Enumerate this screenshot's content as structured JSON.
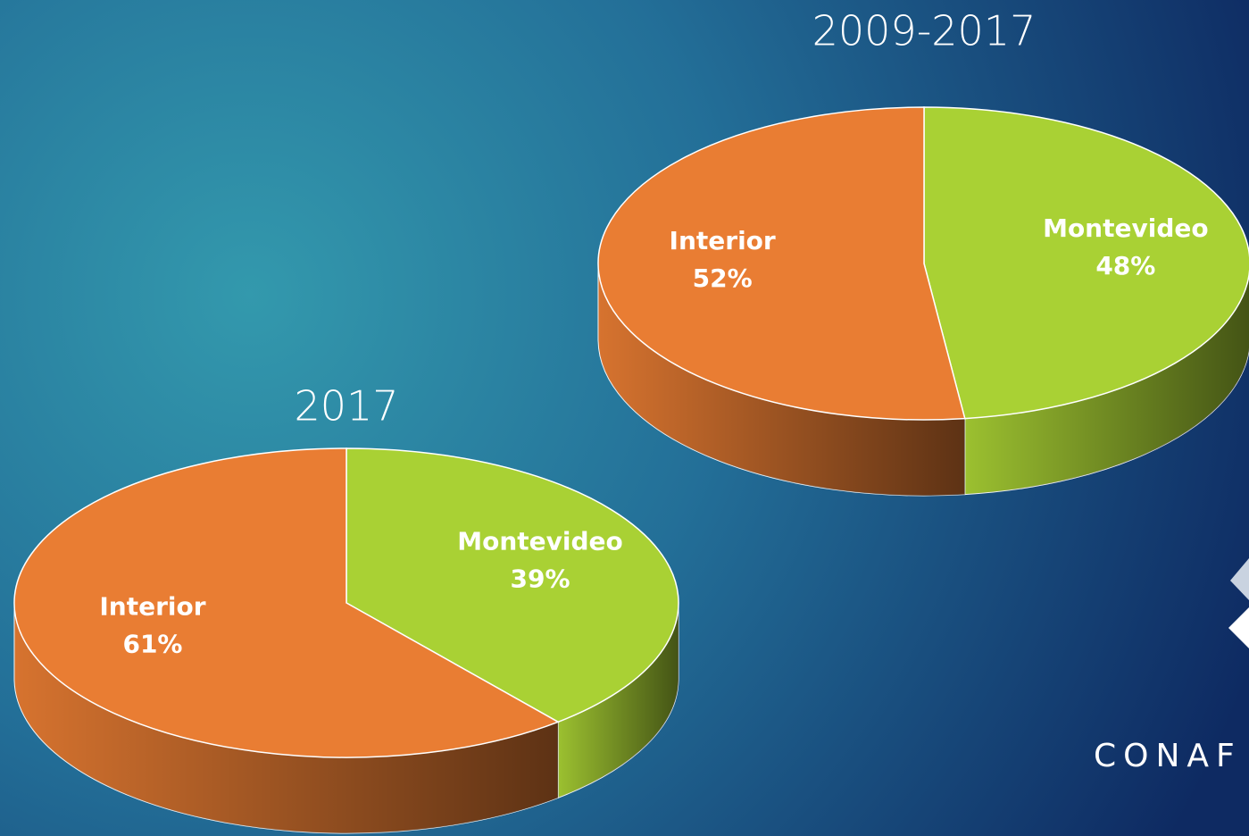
{
  "chart_data": [
    {
      "type": "pie",
      "title": "2009-2017",
      "categories": [
        "Montevideo",
        "Interior"
      ],
      "values": [
        48,
        52
      ],
      "value_labels": [
        "48%",
        "52%"
      ],
      "colors": [
        "#a9d134",
        "#e97d33"
      ]
    },
    {
      "type": "pie",
      "title": "2017",
      "categories": [
        "Montevideo",
        "Interior"
      ],
      "values": [
        39,
        61
      ],
      "value_labels": [
        "39%",
        "61%"
      ],
      "colors": [
        "#a9d134",
        "#e97d33"
      ]
    }
  ],
  "logo_text": "CONAF"
}
